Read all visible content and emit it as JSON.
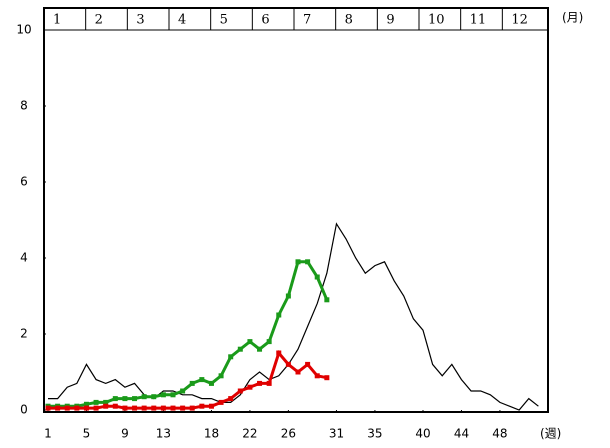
{
  "chart_data": {
    "type": "line",
    "months": [
      "1",
      "2",
      "3",
      "4",
      "5",
      "6",
      "7",
      "8",
      "9",
      "10",
      "11",
      "12"
    ],
    "month_axis_label": "(月)",
    "week_axis_label": "(週)",
    "x": [
      1,
      2,
      3,
      4,
      5,
      6,
      7,
      8,
      9,
      10,
      11,
      12,
      13,
      14,
      15,
      16,
      17,
      18,
      19,
      20,
      21,
      22,
      23,
      24,
      25,
      26,
      27,
      28,
      29,
      30,
      31,
      32,
      33,
      34,
      35,
      36,
      37,
      38,
      39,
      40,
      41,
      42,
      43,
      44,
      45,
      46,
      47,
      48,
      49,
      50,
      51,
      52
    ],
    "series": [
      {
        "color": "#000000",
        "markers": false,
        "values": [
          0.3,
          0.3,
          0.6,
          0.7,
          1.2,
          0.8,
          0.7,
          0.8,
          0.6,
          0.7,
          0.4,
          0.3,
          0.5,
          0.5,
          0.4,
          0.4,
          0.3,
          0.3,
          0.2,
          0.2,
          0.4,
          0.8,
          1.0,
          0.8,
          0.9,
          1.2,
          1.6,
          2.2,
          2.8,
          3.6,
          4.9,
          4.5,
          4.0,
          3.6,
          3.8,
          3.9,
          3.4,
          3.0,
          2.4,
          2.1,
          1.2,
          0.9,
          1.2,
          0.8,
          0.5,
          0.5,
          0.4,
          0.2,
          0.1,
          0.0,
          0.3,
          0.1
        ]
      },
      {
        "color": "#1a9a1a",
        "markers": true,
        "values": [
          0.1,
          0.1,
          0.1,
          0.1,
          0.15,
          0.2,
          0.2,
          0.3,
          0.3,
          0.3,
          0.35,
          0.35,
          0.4,
          0.4,
          0.5,
          0.7,
          0.8,
          0.7,
          0.9,
          1.4,
          1.6,
          1.8,
          1.6,
          1.8,
          2.5,
          3.0,
          3.9,
          3.9,
          3.5,
          2.9,
          null,
          null,
          null,
          null,
          null,
          null,
          null,
          null,
          null,
          null,
          null,
          null,
          null,
          null,
          null,
          null,
          null,
          null,
          null,
          null,
          null,
          null
        ]
      },
      {
        "color": "#e00000",
        "markers": true,
        "values": [
          0.05,
          0.05,
          0.05,
          0.05,
          0.05,
          0.05,
          0.1,
          0.1,
          0.05,
          0.05,
          0.05,
          0.05,
          0.05,
          0.05,
          0.05,
          0.05,
          0.1,
          0.1,
          0.2,
          0.3,
          0.5,
          0.6,
          0.7,
          0.7,
          1.5,
          1.2,
          1.0,
          1.2,
          0.9,
          0.85,
          null,
          null,
          null,
          null,
          null,
          null,
          null,
          null,
          null,
          null,
          null,
          null,
          null,
          null,
          null,
          null,
          null,
          null,
          null,
          null,
          null,
          null
        ]
      }
    ],
    "xlim": [
      1,
      53
    ],
    "xticks": [
      1,
      5,
      9,
      13,
      18,
      22,
      26,
      31,
      35,
      40,
      44,
      48
    ],
    "ylim": [
      0,
      10
    ],
    "yticks": [
      0,
      2,
      4,
      6,
      8,
      10
    ]
  }
}
